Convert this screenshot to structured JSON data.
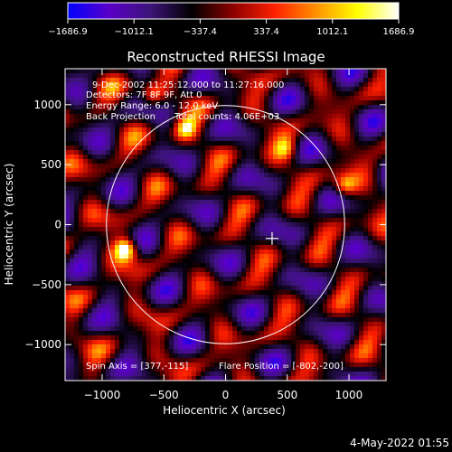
{
  "chart_data": {
    "type": "heatmap",
    "title": "Reconstructed RHESSI Image",
    "xlabel": "Heliocentric X (arcsec)",
    "ylabel": "Heliocentric Y (arcsec)",
    "xlim": [
      -1300,
      1300
    ],
    "ylim": [
      -1300,
      1300
    ],
    "xticks": [
      -1000,
      -500,
      0,
      500,
      1000
    ],
    "yticks": [
      -1000,
      -500,
      0,
      500,
      1000
    ],
    "xticklabels": [
      "−1000",
      "−500",
      "0",
      "500",
      "1000"
    ],
    "yticklabels": [
      "−1000",
      "−500",
      "0",
      "500",
      "1000"
    ],
    "colorbar": {
      "range": [
        -1686.9,
        1686.9
      ],
      "ticks": [
        -1686.9,
        -1012.1,
        -337.4,
        337.4,
        1012.1,
        1686.9
      ],
      "ticklabels": [
        "−1686.9",
        "−1012.1",
        "−337.4",
        "337.4",
        "1012.1",
        "1686.9"
      ],
      "colors": [
        "#0000ff",
        "#5a00c8",
        "#3c1478",
        "#000000",
        "#8c0000",
        "#ff2000",
        "#ff9000",
        "#ffff00",
        "#ffffff"
      ]
    },
    "annotations": [
      "9-Dec-2002 11:25:12.000 to 11:27:16.000",
      "Detectors: 7F 8F 9F, Att 0",
      "Energy Range: 6.0 - 12.0 keV",
      "Back Projection",
      "Total counts: 4.06E+03"
    ],
    "footer_left": "Spin Axis = [377,-115]",
    "footer_right": "Flare Position = [-802,-200]",
    "spin_axis": [
      377,
      -115
    ],
    "flare_position": [
      -802,
      -200
    ],
    "solar_disk_radius": 965,
    "bright_sources": [
      {
        "x": -802,
        "y": -200,
        "level": 1.0
      },
      {
        "x": 960,
        "y": 320,
        "level": 0.7
      },
      {
        "x": -330,
        "y": 800,
        "level": 0.55
      },
      {
        "x": -590,
        "y": 1080,
        "level": 0.55
      },
      {
        "x": 500,
        "y": 630,
        "level": 0.5
      }
    ]
  },
  "timestamp": "4-May-2022 01:55"
}
